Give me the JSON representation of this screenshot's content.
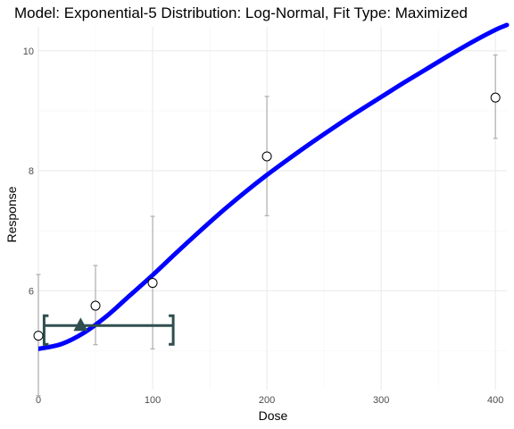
{
  "chart_data": {
    "type": "scatter",
    "title": "Model: Exponential-5 Distribution: Log-Normal,  Fit Type: Maximized",
    "xlabel": "Dose",
    "ylabel": "Response",
    "xlim": [
      0,
      410
    ],
    "ylim": [
      4.35,
      10.4
    ],
    "x_ticks": [
      0,
      100,
      200,
      300,
      400
    ],
    "y_ticks": [
      6,
      8,
      10
    ],
    "grid": true,
    "observations": [
      {
        "x": 0,
        "y": 5.25,
        "lower": 4.25,
        "upper": 6.27
      },
      {
        "x": 50,
        "y": 5.75,
        "lower": 5.1,
        "upper": 6.42
      },
      {
        "x": 100,
        "y": 6.13,
        "lower": 5.03,
        "upper": 7.24
      },
      {
        "x": 200,
        "y": 8.24,
        "lower": 7.25,
        "upper": 9.24
      },
      {
        "x": 400,
        "y": 9.22,
        "lower": 8.54,
        "upper": 9.93
      }
    ],
    "fit_curve": {
      "color": "#0000ff",
      "x": [
        0,
        20,
        40,
        60,
        80,
        100,
        120,
        140,
        160,
        180,
        200,
        220,
        240,
        260,
        280,
        300,
        320,
        340,
        360,
        380,
        400,
        410
      ],
      "y": [
        5.03,
        5.11,
        5.3,
        5.58,
        5.92,
        6.26,
        6.62,
        6.97,
        7.31,
        7.63,
        7.93,
        8.21,
        8.48,
        8.74,
        8.99,
        9.23,
        9.47,
        9.7,
        9.93,
        10.15,
        10.35,
        10.43
      ]
    },
    "bmd": {
      "color": "#2f4f4f",
      "bmd": 37,
      "bmdl": 5,
      "bmdu": 118,
      "response": 5.42
    }
  }
}
